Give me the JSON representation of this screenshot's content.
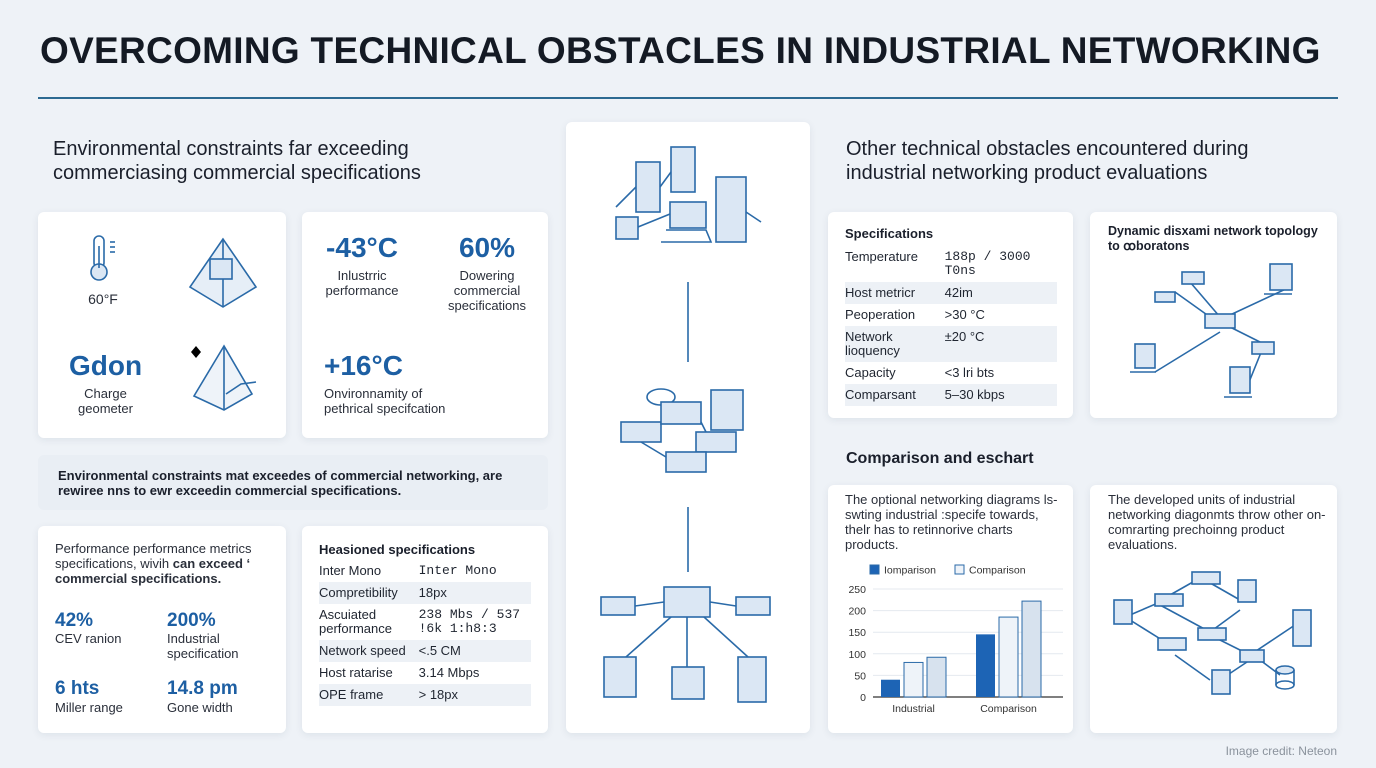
{
  "title": "OVERCOMING TECHNICAL OBSTACLES IN INDUSTRIAL NETWORKING",
  "left": {
    "heading": "Environmental constraints far exceeding commerciasing commercial specifications",
    "card_a": {
      "temp_label": "60°F",
      "stat_value": "Gdon",
      "stat_label": "Charge geometer"
    },
    "card_b": {
      "stats": [
        {
          "value": "-43°C",
          "label": "Inlustrric performance"
        },
        {
          "value": "60%",
          "label": "Dowering commercial specifications"
        },
        {
          "value": "+16°C",
          "label": "Onvironnamity of pethrical specifcation"
        }
      ]
    },
    "banner": "Environmental constraints mat exceedes of commercial networking, are rewiree nns to ewr exceedin commercial specifications.",
    "card_c": {
      "intro": "Performance performance metrics specifications, wivih",
      "intro_bold": "can exceed ‘ commercial specifications.",
      "stats": [
        {
          "value": "42%",
          "label": "CEV ranion"
        },
        {
          "value": "200%",
          "label": "Industrial specification"
        },
        {
          "value": "6 hts",
          "label": "Miller range"
        },
        {
          "value": "14.8 pm",
          "label": "Gone width"
        }
      ]
    },
    "card_d": {
      "title": "Heasioned specifications",
      "rows": [
        [
          "Inter Mono",
          "Inter Mono"
        ],
        [
          "Compretibility",
          "18px"
        ],
        [
          "Ascuiated performance",
          "238 Mbs / 537 !6k 1:h8:3"
        ],
        [
          "Network speed",
          "<.5 CM"
        ],
        [
          "Host ratarise",
          "3.14 Mbps"
        ],
        [
          "OPE frame",
          "> 18px"
        ]
      ]
    }
  },
  "right": {
    "heading": "Other technical obstacles encountered during industrial networking product evaluations",
    "card_e": {
      "title": "Specifications",
      "rows": [
        [
          "Temperature",
          "188p / 3000 T0ns"
        ],
        [
          "Host metricr",
          "42im"
        ],
        [
          "Peoperation",
          ">30 °C"
        ],
        [
          "Network lioquency",
          "±20 °C"
        ],
        [
          "Capacity",
          "<3 lri bts"
        ],
        [
          "Comparsant",
          "5–30 kbps"
        ]
      ]
    },
    "card_f": {
      "title": "Dynamic disxami network topology to ꝏboratons"
    },
    "section2_heading": "Comparison and eschart",
    "card_g": {
      "text": "The optional networking diagrams ls-swting industrial :specife towards, thelr has to retinnorive charts products."
    },
    "card_h": {
      "text": "The developed units of industrial networking diagonmts throw other on-comrarting prechoinng product evaluations."
    }
  },
  "chart_data": {
    "type": "bar",
    "categories": [
      "Industrial",
      "Comparison"
    ],
    "series": [
      {
        "name": "Iomparison",
        "values": [
          40,
          145
        ],
        "color": "#1d64b5"
      },
      {
        "name": "Comparison",
        "values": [
          80,
          185
        ],
        "color": "#eef3f9"
      },
      {
        "values": [
          92,
          222
        ],
        "color": "#d7e2ee"
      }
    ],
    "ylim": [
      0,
      250
    ],
    "yticks": [
      "0",
      "50",
      "100",
      "150",
      "200",
      "250"
    ],
    "grid": true,
    "legend": "top"
  },
  "credit": "Image credit: Neteon"
}
